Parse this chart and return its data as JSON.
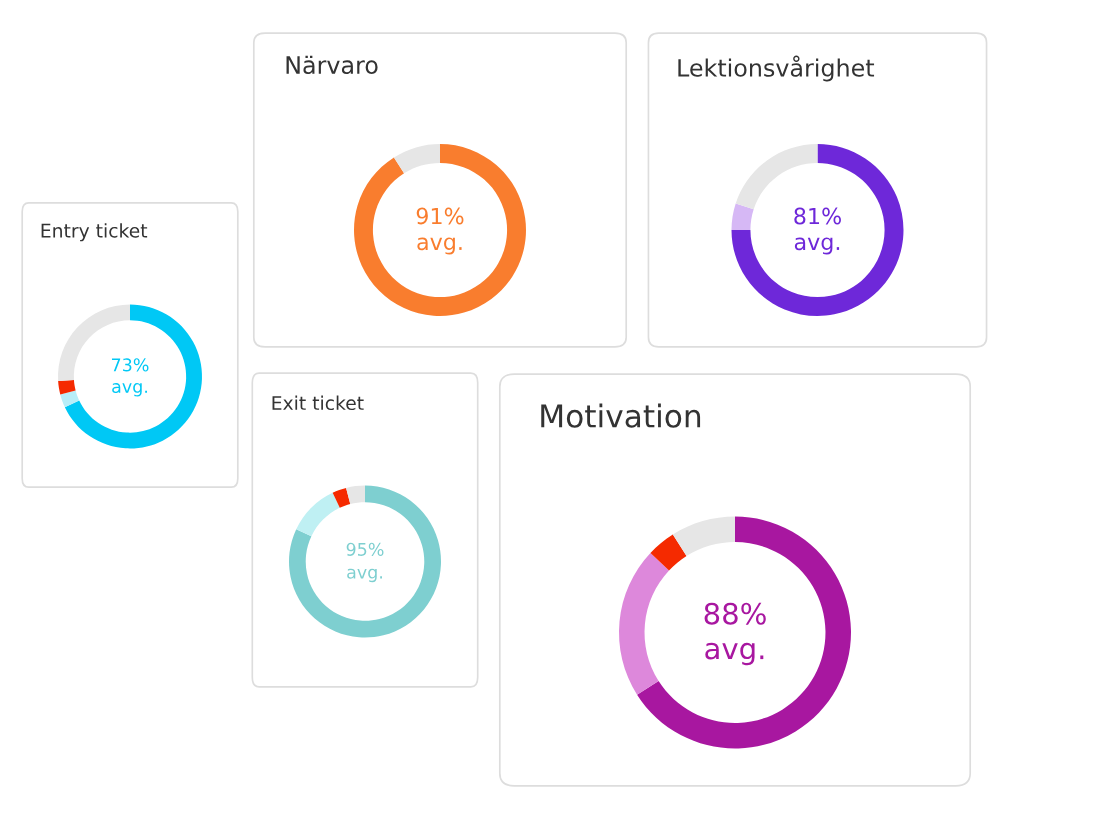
{
  "chart_data": [
    {
      "type": "donut",
      "title": "Närvaro",
      "categories": [
        null,
        null
      ],
      "values": [
        91,
        9
      ],
      "colors": [
        "#f97d2e",
        "#e6e6e6"
      ],
      "annotations": [
        "91%",
        "avg."
      ]
    },
    {
      "type": "donut",
      "title": "Lektionsvårighet",
      "categories": [
        null,
        null,
        null
      ],
      "values": [
        75,
        5,
        20
      ],
      "colors": [
        "#6e28d9",
        "#d6b8f5",
        "#e6e6e6"
      ],
      "annotations": [
        "81%",
        "avg."
      ]
    },
    {
      "type": "donut",
      "title": "Entry ticket",
      "categories": [
        null,
        null,
        null,
        null
      ],
      "values": [
        68,
        3,
        3,
        26
      ],
      "colors": [
        "#00c8f5",
        "#b8eef8",
        "#f52a00",
        "#e6e6e6"
      ],
      "annotations": [
        "73%",
        "avg."
      ]
    },
    {
      "type": "donut",
      "title": "Exit ticket",
      "categories": [
        null,
        null,
        null,
        null
      ],
      "values": [
        82,
        11,
        3,
        4
      ],
      "colors": [
        "#7ecfd0",
        "#bff0f3",
        "#f52a00",
        "#e6e6e6"
      ],
      "annotations": [
        "95%",
        "avg."
      ]
    },
    {
      "type": "donut",
      "title": "Motivation",
      "categories": [
        null,
        null,
        null,
        null
      ],
      "values": [
        66,
        21,
        4,
        9
      ],
      "colors": [
        "#a817a0",
        "#dd88db",
        "#f52a00",
        "#e6e6e6"
      ],
      "annotations": [
        "88%",
        "avg."
      ]
    }
  ]
}
